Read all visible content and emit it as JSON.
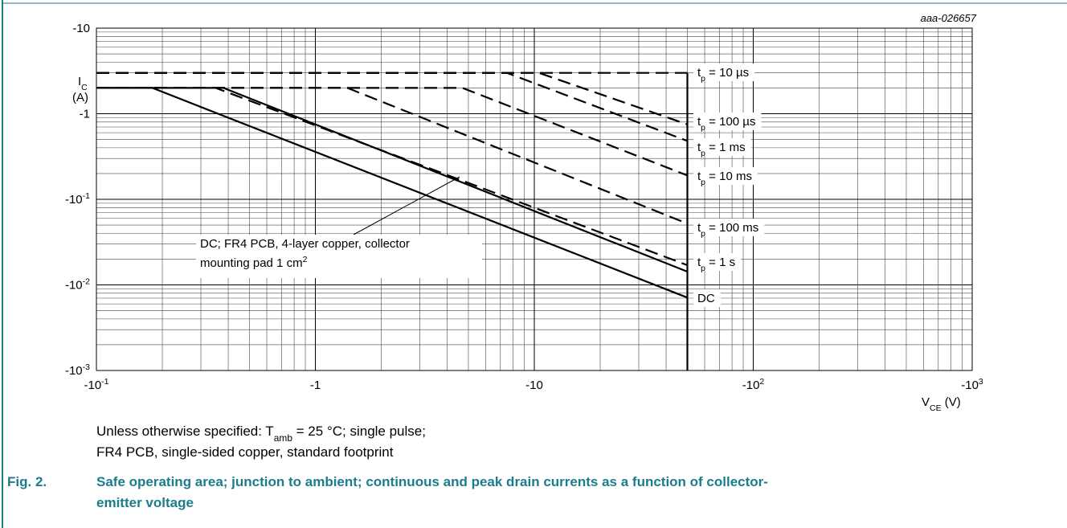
{
  "chart_data": {
    "type": "line",
    "id": "aaa-026657",
    "y_label": [
      "I",
      "C",
      "(A)"
    ],
    "x_label": [
      "V",
      "CE",
      " (V)"
    ],
    "xlim": [
      -0.1,
      -1000
    ],
    "ylim": [
      -0.001,
      -10
    ],
    "log_x": true,
    "log_y": true,
    "grid": true,
    "xticks": [
      {
        "value": -0.1,
        "label": "-10",
        "exp": "-1"
      },
      -1,
      -10,
      {
        "value": -100,
        "label": "-10",
        "exp": "2"
      },
      {
        "value": -1000,
        "label": "-10",
        "exp": "3"
      }
    ],
    "yticks": [
      {
        "value": -0.001,
        "label": "-10",
        "exp": "-3"
      },
      {
        "value": -0.01,
        "label": "-10",
        "exp": "-2"
      },
      {
        "value": -0.1,
        "label": "-10",
        "exp": "-1"
      },
      -1,
      -10
    ],
    "color": "#000000",
    "series": [
      {
        "label": [
          "t",
          "p",
          " = 10 µs"
        ],
        "dashed": true,
        "x": [
          -0.1,
          -50
        ],
        "y": [
          -3,
          -3
        ]
      },
      {
        "label": [
          "t",
          "p",
          " = 100 µs"
        ],
        "dashed": true,
        "x": [
          -0.1,
          -10.5,
          -50
        ],
        "y": [
          -3,
          -3,
          -0.75
        ]
      },
      {
        "label": [
          "t",
          "p",
          " = 1 ms"
        ],
        "dashed": true,
        "x": [
          -0.1,
          -7.5,
          -50
        ],
        "y": [
          -3,
          -3,
          -0.48
        ]
      },
      {
        "label": [
          "t",
          "p",
          " = 10 ms"
        ],
        "dashed": true,
        "x": [
          -0.1,
          -4.7,
          -50
        ],
        "y": [
          -2,
          -2,
          -0.19
        ]
      },
      {
        "label": [
          "t",
          "p",
          " = 100 ms"
        ],
        "dashed": true,
        "x": [
          -0.1,
          -1.4,
          -50
        ],
        "y": [
          -2,
          -2,
          -0.052
        ]
      },
      {
        "label": [
          "t",
          "p",
          " = 1 s"
        ],
        "dashed": true,
        "x": [
          -0.1,
          -0.35,
          -50
        ],
        "y": [
          -2,
          -2,
          -0.017
        ]
      },
      {
        "dashed": false,
        "x": [
          -0.1,
          -0.38,
          -50
        ],
        "y": [
          -2,
          -2,
          -0.0143
        ]
      },
      {
        "label": [
          "DC"
        ],
        "dashed": false,
        "x": [
          -0.1,
          -0.18,
          -50
        ],
        "y": [
          -2,
          -2,
          -0.0071
        ]
      },
      {
        "dashed": false,
        "x": [
          -50,
          -50
        ],
        "y": [
          -3,
          -0.001
        ]
      }
    ],
    "annotation": {
      "lines": [
        "DC; FR4 PCB, 4-layer copper, collector",
        "mounting pad 1 cm"
      ],
      "sup": "2"
    },
    "note": {
      "line1": [
        "Unless otherwise specified: T",
        "amb",
        " = 25 °C; single pulse;"
      ],
      "line2": "FR4 PCB, single-sided copper, standard footprint"
    },
    "caption": {
      "fig": "Fig. 2.",
      "lines": [
        "Safe operating area; junction to ambient; continuous and peak drain currents as a function of collector-",
        "emitter voltage"
      ]
    }
  }
}
